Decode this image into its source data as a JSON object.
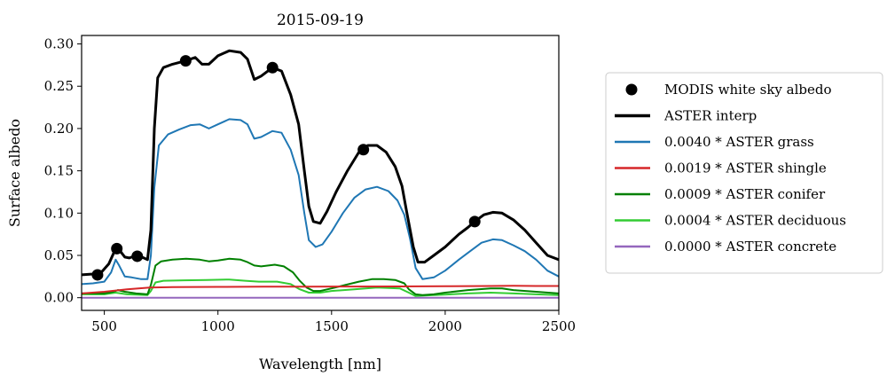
{
  "chart_data": {
    "type": "line",
    "title": "2015-09-19",
    "xlabel": "Wavelength [nm]",
    "ylabel": "Surface albedo",
    "xlim": [
      400,
      2500
    ],
    "ylim": [
      -0.015,
      0.31
    ],
    "xticks": [
      500,
      1000,
      1500,
      2000,
      2500
    ],
    "yticks": [
      0.0,
      0.05,
      0.1,
      0.15,
      0.2,
      0.25,
      0.3
    ],
    "xtick_labels": [
      "500",
      "1000",
      "1500",
      "2000",
      "2500"
    ],
    "ytick_labels": [
      "0.00",
      "0.05",
      "0.10",
      "0.15",
      "0.20",
      "0.25",
      "0.30"
    ],
    "grid": false,
    "legend_position": "outside-right",
    "scatter": {
      "name": "MODIS white sky albedo",
      "color": "#000000",
      "points": [
        [
          470,
          0.027
        ],
        [
          555,
          0.058
        ],
        [
          645,
          0.049
        ],
        [
          858,
          0.28
        ],
        [
          1240,
          0.272
        ],
        [
          1640,
          0.175
        ],
        [
          2130,
          0.09
        ]
      ]
    },
    "series": [
      {
        "name": "ASTER interp",
        "color": "#000000",
        "width": 3,
        "points": [
          [
            400,
            0.027
          ],
          [
            450,
            0.028
          ],
          [
            490,
            0.031
          ],
          [
            520,
            0.04
          ],
          [
            545,
            0.055
          ],
          [
            555,
            0.062
          ],
          [
            570,
            0.055
          ],
          [
            590,
            0.048
          ],
          [
            610,
            0.047
          ],
          [
            640,
            0.05
          ],
          [
            665,
            0.048
          ],
          [
            690,
            0.045
          ],
          [
            705,
            0.08
          ],
          [
            720,
            0.2
          ],
          [
            735,
            0.26
          ],
          [
            760,
            0.272
          ],
          [
            800,
            0.276
          ],
          [
            858,
            0.28
          ],
          [
            900,
            0.284
          ],
          [
            930,
            0.276
          ],
          [
            960,
            0.276
          ],
          [
            1000,
            0.286
          ],
          [
            1050,
            0.292
          ],
          [
            1100,
            0.29
          ],
          [
            1130,
            0.282
          ],
          [
            1160,
            0.258
          ],
          [
            1190,
            0.262
          ],
          [
            1240,
            0.272
          ],
          [
            1280,
            0.268
          ],
          [
            1320,
            0.24
          ],
          [
            1355,
            0.205
          ],
          [
            1380,
            0.15
          ],
          [
            1400,
            0.108
          ],
          [
            1420,
            0.09
          ],
          [
            1450,
            0.088
          ],
          [
            1480,
            0.102
          ],
          [
            1520,
            0.125
          ],
          [
            1570,
            0.15
          ],
          [
            1620,
            0.172
          ],
          [
            1660,
            0.18
          ],
          [
            1700,
            0.18
          ],
          [
            1740,
            0.172
          ],
          [
            1780,
            0.155
          ],
          [
            1810,
            0.132
          ],
          [
            1830,
            0.102
          ],
          [
            1860,
            0.06
          ],
          [
            1880,
            0.042
          ],
          [
            1910,
            0.042
          ],
          [
            1950,
            0.05
          ],
          [
            2000,
            0.06
          ],
          [
            2060,
            0.075
          ],
          [
            2100,
            0.083
          ],
          [
            2130,
            0.09
          ],
          [
            2170,
            0.098
          ],
          [
            2210,
            0.101
          ],
          [
            2250,
            0.1
          ],
          [
            2300,
            0.092
          ],
          [
            2350,
            0.08
          ],
          [
            2400,
            0.065
          ],
          [
            2450,
            0.05
          ],
          [
            2500,
            0.045
          ]
        ]
      },
      {
        "name": "0.0040 * ASTER grass",
        "color": "#1f77b4",
        "width": 2,
        "points": [
          [
            400,
            0.016
          ],
          [
            450,
            0.017
          ],
          [
            500,
            0.019
          ],
          [
            530,
            0.03
          ],
          [
            550,
            0.045
          ],
          [
            565,
            0.038
          ],
          [
            590,
            0.025
          ],
          [
            620,
            0.024
          ],
          [
            660,
            0.022
          ],
          [
            690,
            0.022
          ],
          [
            705,
            0.05
          ],
          [
            720,
            0.13
          ],
          [
            740,
            0.18
          ],
          [
            780,
            0.193
          ],
          [
            830,
            0.199
          ],
          [
            880,
            0.204
          ],
          [
            920,
            0.205
          ],
          [
            960,
            0.2
          ],
          [
            1000,
            0.205
          ],
          [
            1050,
            0.211
          ],
          [
            1100,
            0.21
          ],
          [
            1130,
            0.205
          ],
          [
            1160,
            0.188
          ],
          [
            1190,
            0.19
          ],
          [
            1240,
            0.197
          ],
          [
            1280,
            0.195
          ],
          [
            1320,
            0.175
          ],
          [
            1355,
            0.145
          ],
          [
            1380,
            0.1
          ],
          [
            1400,
            0.068
          ],
          [
            1430,
            0.06
          ],
          [
            1460,
            0.063
          ],
          [
            1500,
            0.078
          ],
          [
            1550,
            0.1
          ],
          [
            1600,
            0.118
          ],
          [
            1650,
            0.128
          ],
          [
            1700,
            0.131
          ],
          [
            1750,
            0.126
          ],
          [
            1790,
            0.115
          ],
          [
            1820,
            0.098
          ],
          [
            1845,
            0.07
          ],
          [
            1870,
            0.035
          ],
          [
            1900,
            0.022
          ],
          [
            1950,
            0.024
          ],
          [
            2000,
            0.032
          ],
          [
            2060,
            0.045
          ],
          [
            2110,
            0.055
          ],
          [
            2160,
            0.065
          ],
          [
            2210,
            0.069
          ],
          [
            2250,
            0.068
          ],
          [
            2300,
            0.062
          ],
          [
            2350,
            0.055
          ],
          [
            2400,
            0.045
          ],
          [
            2450,
            0.032
          ],
          [
            2500,
            0.025
          ]
        ]
      },
      {
        "name": "0.0019 * ASTER shingle",
        "color": "#d62728",
        "width": 2,
        "points": [
          [
            400,
            0.005
          ],
          [
            500,
            0.007
          ],
          [
            600,
            0.01
          ],
          [
            700,
            0.012
          ],
          [
            800,
            0.0125
          ],
          [
            1000,
            0.0128
          ],
          [
            1200,
            0.013
          ],
          [
            1400,
            0.013
          ],
          [
            1600,
            0.0132
          ],
          [
            1800,
            0.0133
          ],
          [
            2000,
            0.0135
          ],
          [
            2200,
            0.0138
          ],
          [
            2300,
            0.014
          ],
          [
            2400,
            0.0138
          ],
          [
            2500,
            0.0138
          ]
        ]
      },
      {
        "name": "0.0009 * ASTER conifer",
        "color": "#008000",
        "width": 2,
        "points": [
          [
            400,
            0.005
          ],
          [
            500,
            0.005
          ],
          [
            540,
            0.007
          ],
          [
            560,
            0.009
          ],
          [
            590,
            0.007
          ],
          [
            640,
            0.005
          ],
          [
            690,
            0.004
          ],
          [
            705,
            0.015
          ],
          [
            725,
            0.038
          ],
          [
            750,
            0.043
          ],
          [
            800,
            0.045
          ],
          [
            860,
            0.046
          ],
          [
            920,
            0.045
          ],
          [
            960,
            0.043
          ],
          [
            1000,
            0.044
          ],
          [
            1050,
            0.046
          ],
          [
            1100,
            0.045
          ],
          [
            1130,
            0.042
          ],
          [
            1160,
            0.038
          ],
          [
            1190,
            0.037
          ],
          [
            1250,
            0.039
          ],
          [
            1290,
            0.037
          ],
          [
            1330,
            0.03
          ],
          [
            1360,
            0.02
          ],
          [
            1390,
            0.012
          ],
          [
            1420,
            0.008
          ],
          [
            1450,
            0.008
          ],
          [
            1500,
            0.011
          ],
          [
            1560,
            0.015
          ],
          [
            1620,
            0.019
          ],
          [
            1680,
            0.022
          ],
          [
            1730,
            0.022
          ],
          [
            1780,
            0.021
          ],
          [
            1820,
            0.017
          ],
          [
            1840,
            0.01
          ],
          [
            1870,
            0.004
          ],
          [
            1900,
            0.003
          ],
          [
            1950,
            0.004
          ],
          [
            2000,
            0.006
          ],
          [
            2100,
            0.009
          ],
          [
            2200,
            0.011
          ],
          [
            2250,
            0.011
          ],
          [
            2300,
            0.009
          ],
          [
            2400,
            0.007
          ],
          [
            2500,
            0.005
          ]
        ]
      },
      {
        "name": "0.0004 * ASTER deciduous",
        "color": "#33cc33",
        "width": 2,
        "points": [
          [
            400,
            0.004
          ],
          [
            500,
            0.004
          ],
          [
            550,
            0.006
          ],
          [
            600,
            0.004
          ],
          [
            690,
            0.003
          ],
          [
            705,
            0.008
          ],
          [
            725,
            0.018
          ],
          [
            760,
            0.02
          ],
          [
            850,
            0.0205
          ],
          [
            950,
            0.021
          ],
          [
            1050,
            0.0215
          ],
          [
            1120,
            0.02
          ],
          [
            1180,
            0.019
          ],
          [
            1260,
            0.019
          ],
          [
            1320,
            0.016
          ],
          [
            1360,
            0.01
          ],
          [
            1400,
            0.006
          ],
          [
            1450,
            0.006
          ],
          [
            1500,
            0.008
          ],
          [
            1600,
            0.01
          ],
          [
            1700,
            0.012
          ],
          [
            1800,
            0.011
          ],
          [
            1840,
            0.006
          ],
          [
            1870,
            0.002
          ],
          [
            1950,
            0.003
          ],
          [
            2100,
            0.005
          ],
          [
            2200,
            0.006
          ],
          [
            2300,
            0.005
          ],
          [
            2400,
            0.004
          ],
          [
            2500,
            0.003
          ]
        ]
      },
      {
        "name": "0.0000 * ASTER concrete",
        "color": "#9467bd",
        "width": 2,
        "points": [
          [
            400,
            0.0
          ],
          [
            2500,
            0.0
          ]
        ]
      }
    ]
  }
}
